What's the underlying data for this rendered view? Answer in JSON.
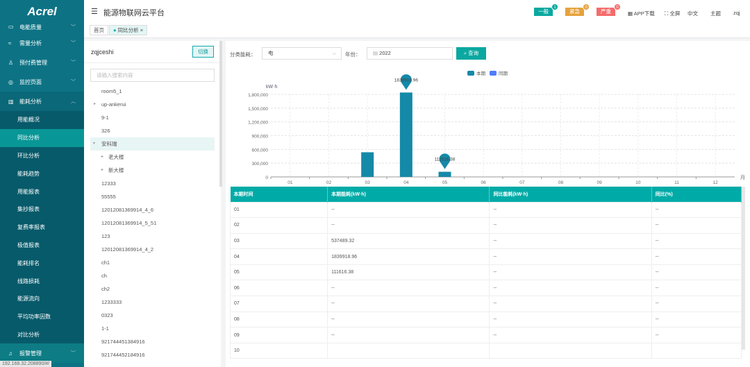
{
  "app": {
    "logo": "Acrel",
    "title": "能源物联网云平台"
  },
  "tabs": {
    "home": "首页",
    "current": "同比分析",
    "close": "×"
  },
  "alarms": [
    {
      "label": "一般",
      "count": "1",
      "color": "#0aa8a0"
    },
    {
      "label": "紧急",
      "count": "0",
      "color": "#e6a23c"
    },
    {
      "label": "严重",
      "count": "0",
      "color": "#f56c6c"
    }
  ],
  "header_links": {
    "app": "APP下载",
    "fullscreen": "全屏",
    "lang": "中文",
    "theme": "主题",
    "user": "zqj"
  },
  "sidebar": {
    "menus": [
      {
        "label": "电能质量",
        "icon": "▭"
      },
      {
        "label": "需量分析",
        "icon": "≈"
      },
      {
        "label": "预付费管理",
        "icon": "♙"
      },
      {
        "label": "监控页面",
        "icon": "◎"
      },
      {
        "label": "能耗分析",
        "icon": "▥"
      }
    ],
    "submenu": [
      "用能概况",
      "同比分析",
      "环比分析",
      "能耗趋势",
      "用能报表",
      "集抄报表",
      "复费率报表",
      "极值报表",
      "能耗排名",
      "线路损耗",
      "能源流向",
      "平均功率因数",
      "对比分析"
    ],
    "active": "同比分析",
    "bottom": {
      "label": "报警管理",
      "icon": "♫"
    }
  },
  "status_url": "192.168.32.208890/#/",
  "tree": {
    "user": "zqjceshi",
    "switch": "切换",
    "search_placeholder": "请输入搜索内容",
    "nodes": [
      {
        "label": "room5_1"
      },
      {
        "label": "up-ankerui",
        "twisty": "▸"
      },
      {
        "label": "9-1"
      },
      {
        "label": "326"
      },
      {
        "label": "安科瑞",
        "twisty": "▾",
        "selected": true
      },
      {
        "label": "老大楼",
        "twisty": "▸",
        "child": true
      },
      {
        "label": "新大楼",
        "twisty": "▸",
        "child": true
      },
      {
        "label": "12333"
      },
      {
        "label": "55555"
      },
      {
        "label": "12012081369914_4_6"
      },
      {
        "label": "12012081369914_5_51"
      },
      {
        "label": "123"
      },
      {
        "label": "12012081369914_4_2"
      },
      {
        "label": "ch1"
      },
      {
        "label": "ch"
      },
      {
        "label": "ch2"
      },
      {
        "label": "1233333"
      },
      {
        "label": "0323"
      },
      {
        "label": "1-1"
      },
      {
        "label": "921744451384916"
      },
      {
        "label": "921744452184916"
      }
    ]
  },
  "filters": {
    "category_label": "分类能耗：",
    "category_value": "电",
    "year_label": "年份：",
    "year_value": "2022",
    "query": "查询"
  },
  "chart_data": {
    "type": "bar",
    "ylabel": "kW·h",
    "xunit": "月",
    "categories": [
      "01",
      "02",
      "03",
      "04",
      "05",
      "06",
      "07",
      "08",
      "09",
      "10",
      "11",
      "12"
    ],
    "series": [
      {
        "name": "本期",
        "color": "#1589a8",
        "values": [
          null,
          null,
          537489.32,
          1839918.96,
          111616.38,
          null,
          null,
          null,
          null,
          null,
          null,
          null
        ]
      },
      {
        "name": "同期",
        "color": "#4f7cff",
        "values": [
          null,
          null,
          null,
          null,
          null,
          null,
          null,
          null,
          null,
          null,
          null,
          null
        ]
      }
    ],
    "yticks": [
      "0",
      "300,000",
      "600,000",
      "900,000",
      "1,200,000",
      "1,500,000",
      "1,800,000"
    ],
    "ylim": [
      0,
      1800000
    ],
    "grid": true,
    "legend": "top-right",
    "markers": [
      {
        "category": "04",
        "label": "1839918.96"
      },
      {
        "category": "05",
        "label": "111616.38"
      }
    ]
  },
  "table": {
    "headers": [
      "本期时间",
      "本期能耗(kW·h)",
      "同比能耗(kW·h)",
      "同比(%)"
    ],
    "rows": [
      [
        "01",
        "--",
        "--",
        "--"
      ],
      [
        "02",
        "--",
        "--",
        "--"
      ],
      [
        "03",
        "537489.32",
        "--",
        "--"
      ],
      [
        "04",
        "1839918.96",
        "--",
        "--"
      ],
      [
        "05",
        "111616.38",
        "--",
        "--"
      ],
      [
        "06",
        "--",
        "--",
        "--"
      ],
      [
        "07",
        "--",
        "--",
        "--"
      ],
      [
        "08",
        "--",
        "--",
        "--"
      ],
      [
        "09",
        "--",
        "--",
        "--"
      ],
      [
        "10",
        "",
        "",
        ""
      ]
    ]
  }
}
